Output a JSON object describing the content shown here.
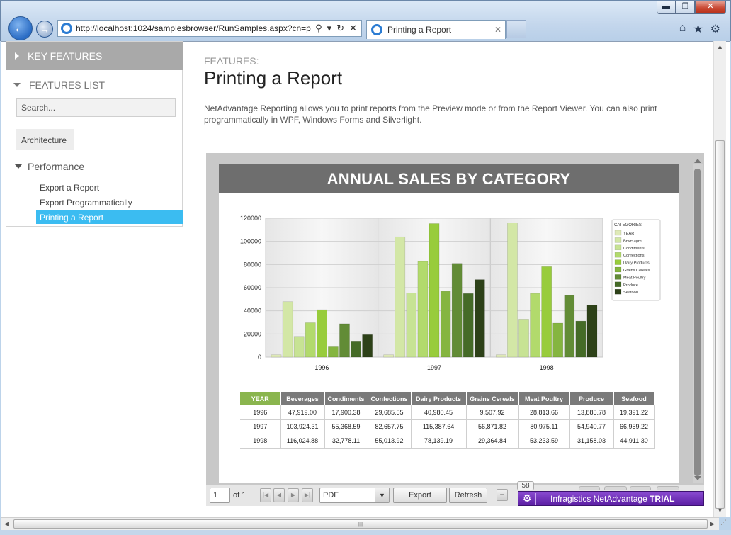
{
  "browser": {
    "url": "http://localhost:1024/samplesbrowser/RunSamples.aspx?cn=pri",
    "tab_title": "Printing a Report",
    "window_buttons": {
      "minimize": "▬",
      "maximize": "❐",
      "close": "✕"
    },
    "toolbar_glyphs": {
      "search": "⚲",
      "dropdown": "▾",
      "refresh": "↻",
      "stop": "✕",
      "tab_close": "✕",
      "home": "⌂",
      "favorites": "★",
      "settings": "⚙"
    },
    "icons": [
      "back-arrow-icon",
      "forward-arrow-icon",
      "ie-icon",
      "search-icon",
      "refresh-icon",
      "stop-icon",
      "home-icon",
      "star-icon",
      "gear-icon"
    ]
  },
  "sidebar": {
    "key_features": "KEY FEATURES",
    "features_list": "FEATURES LIST",
    "search_placeholder": "Search...",
    "architecture": "Architecture",
    "performance": "Performance",
    "items": [
      "Export a Report",
      "Export Programmatically",
      "Printing a Report"
    ],
    "active_index": 2,
    "accent": "#3bbcf1"
  },
  "main": {
    "label": "FEATURES:",
    "title": "Printing a Report",
    "description": "NetAdvantage Reporting allows you to print reports from the Preview mode or from the Report Viewer. You can also print programmatically in WPF, Windows Forms and Silverlight."
  },
  "report": {
    "title": "ANNUAL SALES BY CATEGORY",
    "table": {
      "headers": [
        "YEAR",
        "Beverages",
        "Condiments",
        "Confections",
        "Dairy Products",
        "Grains Cereals",
        "Meat Poultry",
        "Produce",
        "Seafood"
      ],
      "rows": [
        [
          "1996",
          "47,919.00",
          "17,900.38",
          "29,685.55",
          "40,980.45",
          "9,507.92",
          "28,813.66",
          "13,885.78",
          "19,391.22"
        ],
        [
          "1997",
          "103,924.31",
          "55,368.59",
          "82,657.75",
          "115,387.64",
          "56,871.82",
          "80,975.11",
          "54,940.77",
          "66,959.22"
        ],
        [
          "1998",
          "116,024.88",
          "32,778.11",
          "55,013.92",
          "78,139.19",
          "29,364.84",
          "53,233.59",
          "31,158.03",
          "44,911.30"
        ]
      ]
    }
  },
  "chart_data": {
    "type": "bar",
    "categories": [
      "1996",
      "1997",
      "1998"
    ],
    "legend_title": "CATEGORIES",
    "legend_position": "right",
    "ylim": [
      0,
      120000
    ],
    "yticks": [
      "0",
      "20000",
      "40000",
      "60000",
      "80000",
      "100000",
      "120000"
    ],
    "grid": true,
    "series": [
      {
        "name": "YEAR",
        "values": [
          1996,
          1997,
          1998
        ],
        "color": "#dfeab8"
      },
      {
        "name": "Beverages",
        "values": [
          47919.0,
          103924.31,
          116024.88
        ],
        "color": "#d3e7a6"
      },
      {
        "name": "Condiments",
        "values": [
          17900.38,
          55368.59,
          32778.11
        ],
        "color": "#c7e394"
      },
      {
        "name": "Confections",
        "values": [
          29685.55,
          82657.75,
          55013.92
        ],
        "color": "#b2da6c"
      },
      {
        "name": "Dairy Products",
        "values": [
          40980.45,
          115387.64,
          78139.19
        ],
        "color": "#98cc3c"
      },
      {
        "name": "Grains Cereals",
        "values": [
          9507.92,
          56871.82,
          29364.84
        ],
        "color": "#85b540"
      },
      {
        "name": "Meat Poultry",
        "values": [
          28813.66,
          80975.11,
          53233.59
        ],
        "color": "#628c36"
      },
      {
        "name": "Produce",
        "values": [
          13885.78,
          54940.77,
          31158.03
        ],
        "color": "#456b27"
      },
      {
        "name": "Seafood",
        "values": [
          19391.22,
          66959.22,
          44911.3
        ],
        "color": "#2d4118"
      }
    ]
  },
  "report_toolbar": {
    "page_value": "1",
    "of_label": "of 1",
    "nav_glyphs": {
      "first": "|◀",
      "prev": "◀",
      "next": "▶",
      "last": "▶|",
      "dropdown": "▼",
      "zoom_out": "−"
    },
    "format": "PDF",
    "export": "Export",
    "refresh": "Refresh",
    "zoom": "58",
    "trial_text": "Infragistics NetAdvantage",
    "trial_bold": "TRIAL"
  }
}
